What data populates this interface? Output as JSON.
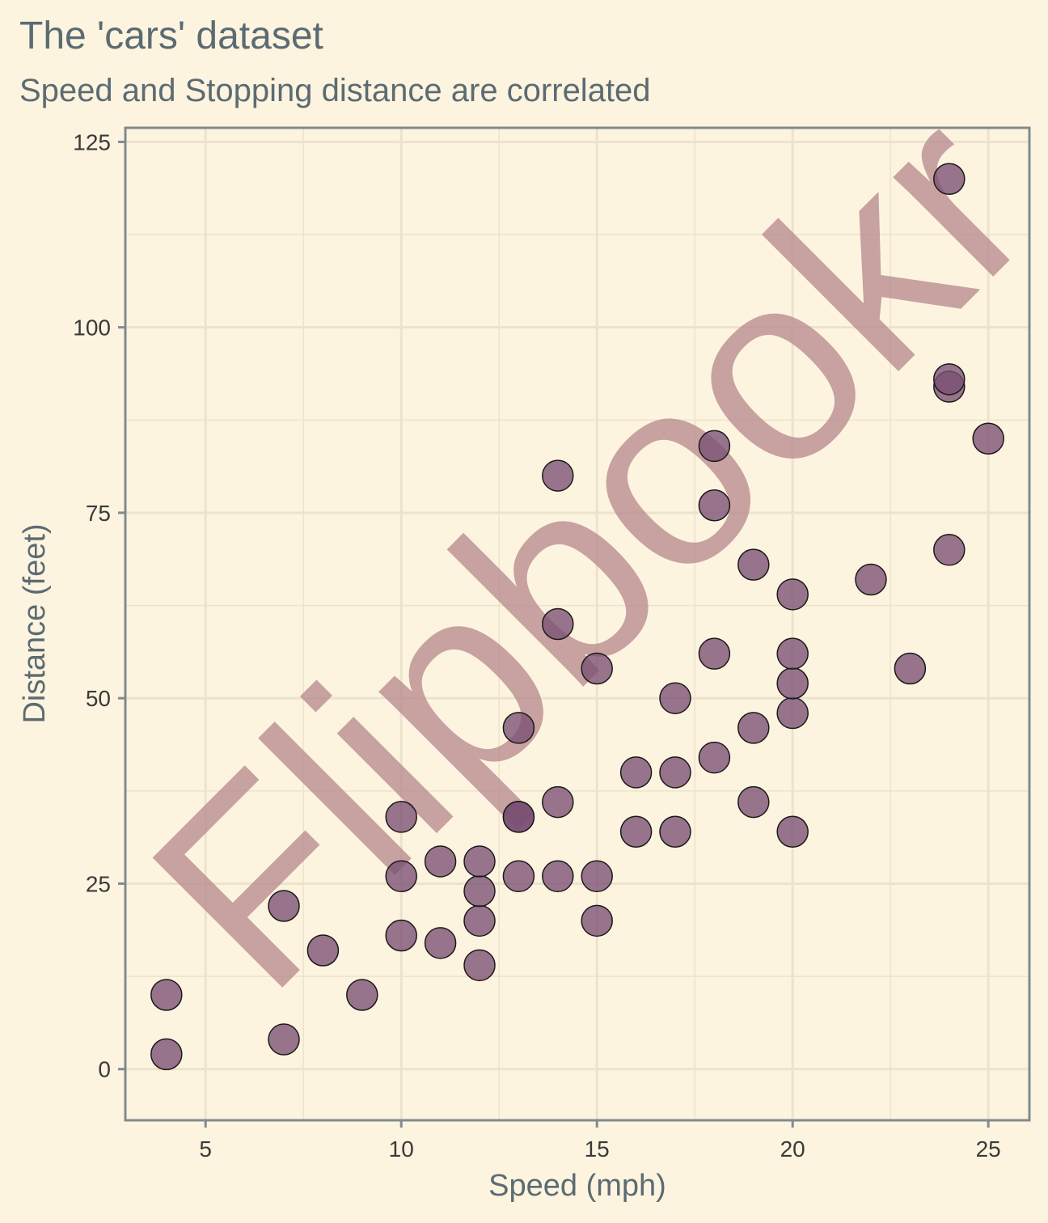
{
  "colors": {
    "background": "#fdf4df",
    "grid": "#ece3cc",
    "axis": "#808b8f",
    "point_fill": "#7a4f73",
    "point_stroke": "#1a1a1a",
    "text": "#5c6b73",
    "watermark": "#b78a90"
  },
  "watermark": "Flipbookr",
  "chart_data": {
    "type": "scatter",
    "title": "The 'cars' dataset",
    "subtitle": "Speed and Stopping distance are correlated",
    "xlabel": "Speed (mph)",
    "ylabel": "Distance (feet)",
    "xlim": [
      2.95,
      26.05
    ],
    "ylim": [
      -6.9,
      126.9
    ],
    "xticks": [
      5,
      10,
      15,
      20,
      25
    ],
    "yticks": [
      0,
      25,
      50,
      75,
      100,
      125
    ],
    "grid": true,
    "legend": "none",
    "x": [
      4,
      4,
      7,
      7,
      8,
      9,
      10,
      10,
      10,
      11,
      11,
      12,
      12,
      12,
      12,
      13,
      13,
      13,
      13,
      14,
      14,
      14,
      14,
      15,
      15,
      15,
      16,
      16,
      17,
      17,
      17,
      18,
      18,
      18,
      18,
      19,
      19,
      19,
      20,
      20,
      20,
      20,
      20,
      22,
      23,
      24,
      24,
      24,
      24,
      25
    ],
    "y": [
      2,
      10,
      4,
      22,
      16,
      10,
      18,
      26,
      34,
      17,
      28,
      14,
      20,
      24,
      28,
      26,
      34,
      34,
      46,
      26,
      36,
      60,
      80,
      20,
      26,
      54,
      32,
      40,
      32,
      40,
      50,
      42,
      56,
      76,
      84,
      36,
      46,
      68,
      32,
      48,
      52,
      56,
      64,
      66,
      54,
      70,
      92,
      93,
      120,
      85
    ]
  }
}
